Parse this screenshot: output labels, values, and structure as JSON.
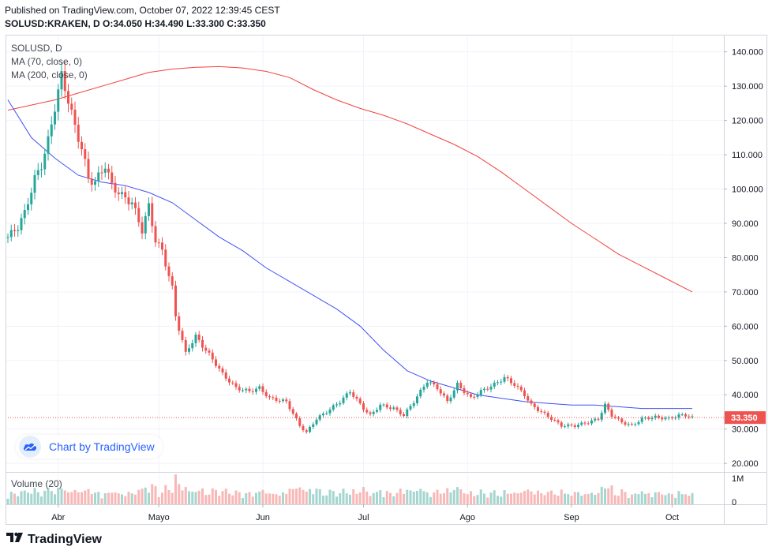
{
  "header": {
    "published": "Published on TradingView.com, October 07, 2022 12:39:45 CEST",
    "ohlc": "SOLUSD:KRAKEN, D  O:34.050 H:34.490 L:33.300 C:33.350"
  },
  "legend": {
    "symbol": "SOLUSD, D",
    "ma70": "MA (70, close, 0)",
    "ma200": "MA (200, close, 0)",
    "volume": "Volume (20)"
  },
  "badge": {
    "text": "Chart by TradingView",
    "icon": "tradingview-cloud-icon"
  },
  "footer": {
    "text": "TradingView",
    "icon": "tradingview-logo-icon"
  },
  "colors": {
    "up": "#26a69a",
    "down": "#ef5350",
    "upVol": "#a5d6cf",
    "downVol": "#f7b8b7",
    "ma70": "#3f51f5",
    "ma200": "#f2423c",
    "lastPrice": "#ef5350"
  },
  "chart_data": {
    "type": "candlestick",
    "symbol": "SOLUSD",
    "timeframe": "D",
    "last_price": 33.35,
    "last_price_label": "33.350",
    "y_axis": {
      "range": [
        17.5,
        145
      ],
      "ticks": [
        20,
        30,
        40,
        50,
        60,
        70,
        80,
        90,
        100,
        110,
        120,
        130,
        140
      ],
      "tick_labels": [
        "20.000",
        "30.000",
        "40.000",
        "50.000",
        "60.000",
        "70.000",
        "80.000",
        "90.000",
        "100.000",
        "110.000",
        "120.000",
        "130.000",
        "140.000"
      ]
    },
    "volume_axis": {
      "tick_labels": [
        "1M",
        "0"
      ]
    },
    "x_axis": {
      "start_date": "2022-03-17",
      "end_date": "2022-10-07",
      "ticks": [
        {
          "label": "Abr",
          "date": "2022-04-01"
        },
        {
          "label": "Mayo",
          "date": "2022-05-01"
        },
        {
          "label": "Jun",
          "date": "2022-06-01"
        },
        {
          "label": "Jul",
          "date": "2022-07-01"
        },
        {
          "label": "Ago",
          "date": "2022-08-01"
        },
        {
          "label": "Sep",
          "date": "2022-09-01"
        },
        {
          "label": "Oct",
          "date": "2022-10-01"
        }
      ]
    },
    "close_anchors": [
      [
        "2022-03-17",
        86
      ],
      [
        "2022-03-20",
        89
      ],
      [
        "2022-03-22",
        93
      ],
      [
        "2022-03-25",
        103
      ],
      [
        "2022-03-27",
        107
      ],
      [
        "2022-03-29",
        114
      ],
      [
        "2022-03-31",
        124
      ],
      [
        "2022-04-02",
        133
      ],
      [
        "2022-04-04",
        126
      ],
      [
        "2022-04-06",
        118
      ],
      [
        "2022-04-08",
        112
      ],
      [
        "2022-04-10",
        103
      ],
      [
        "2022-04-12",
        102
      ],
      [
        "2022-04-15",
        107
      ],
      [
        "2022-04-17",
        101
      ],
      [
        "2022-04-20",
        98
      ],
      [
        "2022-04-23",
        96
      ],
      [
        "2022-04-26",
        88
      ],
      [
        "2022-04-28",
        95
      ],
      [
        "2022-04-30",
        85
      ],
      [
        "2022-05-02",
        82
      ],
      [
        "2022-05-05",
        71
      ],
      [
        "2022-05-06",
        63
      ],
      [
        "2022-05-09",
        52
      ],
      [
        "2022-05-10",
        54
      ],
      [
        "2022-05-12",
        57
      ],
      [
        "2022-05-15",
        53
      ],
      [
        "2022-05-18",
        49
      ],
      [
        "2022-05-20",
        46
      ],
      [
        "2022-05-24",
        42
      ],
      [
        "2022-05-28",
        41
      ],
      [
        "2022-05-31",
        42
      ],
      [
        "2022-06-03",
        39
      ],
      [
        "2022-06-08",
        38
      ],
      [
        "2022-06-12",
        31
      ],
      [
        "2022-06-14",
        29
      ],
      [
        "2022-06-17",
        33
      ],
      [
        "2022-06-20",
        35
      ],
      [
        "2022-06-24",
        38
      ],
      [
        "2022-06-27",
        41
      ],
      [
        "2022-07-01",
        36
      ],
      [
        "2022-07-03",
        34
      ],
      [
        "2022-07-06",
        37
      ],
      [
        "2022-07-10",
        36
      ],
      [
        "2022-07-13",
        34
      ],
      [
        "2022-07-16",
        38
      ],
      [
        "2022-07-20",
        44
      ],
      [
        "2022-07-23",
        42
      ],
      [
        "2022-07-26",
        38
      ],
      [
        "2022-07-29",
        43
      ],
      [
        "2022-08-02",
        39
      ],
      [
        "2022-08-05",
        41
      ],
      [
        "2022-08-09",
        43
      ],
      [
        "2022-08-12",
        45
      ],
      [
        "2022-08-15",
        43
      ],
      [
        "2022-08-18",
        40
      ],
      [
        "2022-08-20",
        37
      ],
      [
        "2022-08-23",
        35
      ],
      [
        "2022-08-26",
        33
      ],
      [
        "2022-08-29",
        31
      ],
      [
        "2022-09-02",
        31
      ],
      [
        "2022-09-06",
        32
      ],
      [
        "2022-09-09",
        33
      ],
      [
        "2022-09-11",
        37
      ],
      [
        "2022-09-13",
        34
      ],
      [
        "2022-09-16",
        32
      ],
      [
        "2022-09-19",
        31
      ],
      [
        "2022-09-22",
        33
      ],
      [
        "2022-09-26",
        33.5
      ],
      [
        "2022-09-30",
        33
      ],
      [
        "2022-10-03",
        34
      ],
      [
        "2022-10-05",
        34
      ],
      [
        "2022-10-07",
        33.35
      ]
    ],
    "series": [
      {
        "name": "MA (70, close, 0)",
        "points": [
          [
            "2022-03-17",
            126
          ],
          [
            "2022-03-24",
            115
          ],
          [
            "2022-03-31",
            109
          ],
          [
            "2022-04-07",
            104
          ],
          [
            "2022-04-14",
            102
          ],
          [
            "2022-04-21",
            101
          ],
          [
            "2022-04-28",
            99
          ],
          [
            "2022-05-05",
            96
          ],
          [
            "2022-05-12",
            91
          ],
          [
            "2022-05-19",
            86
          ],
          [
            "2022-05-26",
            82
          ],
          [
            "2022-06-02",
            77
          ],
          [
            "2022-06-09",
            73
          ],
          [
            "2022-06-16",
            69
          ],
          [
            "2022-06-23",
            65
          ],
          [
            "2022-06-30",
            60
          ],
          [
            "2022-07-07",
            53
          ],
          [
            "2022-07-14",
            47
          ],
          [
            "2022-07-21",
            44
          ],
          [
            "2022-07-28",
            42
          ],
          [
            "2022-08-04",
            40
          ],
          [
            "2022-08-11",
            39
          ],
          [
            "2022-08-18",
            38
          ],
          [
            "2022-08-25",
            37.5
          ],
          [
            "2022-09-01",
            37
          ],
          [
            "2022-09-08",
            37
          ],
          [
            "2022-09-15",
            36.5
          ],
          [
            "2022-09-22",
            36
          ],
          [
            "2022-09-29",
            36
          ],
          [
            "2022-10-07",
            36
          ]
        ]
      },
      {
        "name": "MA (200, close, 0)",
        "points": [
          [
            "2022-03-17",
            123
          ],
          [
            "2022-03-24",
            124.5
          ],
          [
            "2022-03-31",
            126
          ],
          [
            "2022-04-07",
            128
          ],
          [
            "2022-04-14",
            130
          ],
          [
            "2022-04-21",
            132
          ],
          [
            "2022-04-28",
            134
          ],
          [
            "2022-05-05",
            135
          ],
          [
            "2022-05-12",
            135.5
          ],
          [
            "2022-05-19",
            135.7
          ],
          [
            "2022-05-26",
            135.3
          ],
          [
            "2022-06-02",
            134.3
          ],
          [
            "2022-06-09",
            132.5
          ],
          [
            "2022-06-16",
            129
          ],
          [
            "2022-06-23",
            126
          ],
          [
            "2022-06-30",
            123.5
          ],
          [
            "2022-07-07",
            121.5
          ],
          [
            "2022-07-14",
            119
          ],
          [
            "2022-07-21",
            116
          ],
          [
            "2022-07-28",
            113
          ],
          [
            "2022-08-04",
            109.5
          ],
          [
            "2022-08-11",
            105
          ],
          [
            "2022-08-18",
            100
          ],
          [
            "2022-08-25",
            95
          ],
          [
            "2022-09-01",
            90
          ],
          [
            "2022-09-08",
            85.5
          ],
          [
            "2022-09-15",
            81
          ],
          [
            "2022-09-22",
            77.5
          ],
          [
            "2022-09-29",
            74
          ],
          [
            "2022-10-07",
            70
          ]
        ]
      }
    ]
  }
}
